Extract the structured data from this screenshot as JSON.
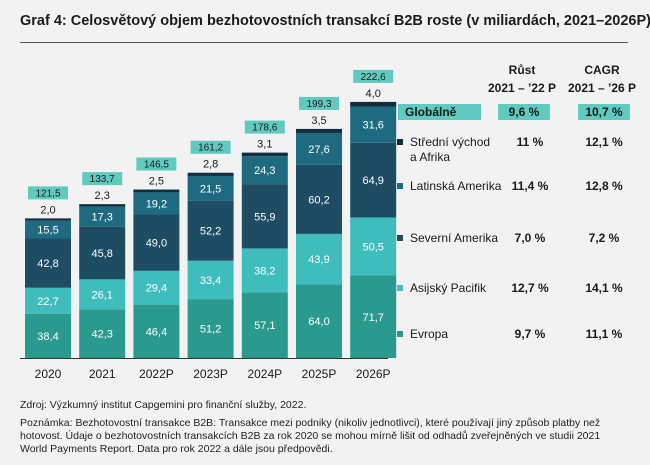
{
  "title": "Graf 4: Celosvětový objem bezhotovostních transakcí B2B roste (v miliardách, 2021–2026P)",
  "source": "Zdroj: Výzkumný institut Capgemini pro finanční služby, 2022.",
  "footnote": "Poznámka: Bezhotovostní transakce B2B: Transakce mezi podniky (nikoliv jednotlivci), které používají jiný způsob platby než hotovost. Údaje o bezhotovostních transakcích B2B za rok 2020 se mohou mírně lišit od odhadů zveřejněných ve studii 2021 World Payments Report. Data pro rok 2022 a dále jsou předpovědi.",
  "colors": {
    "evropa": "#2a9a8e",
    "asia": "#3fbcbc",
    "north_america": "#1d4c63",
    "latin_america": "#1e6a80",
    "middle_east": "#0f2f40",
    "total_box": "#60c9c0",
    "global_row": "#60c9c0"
  },
  "chart_data": {
    "type": "bar",
    "stacked": true,
    "categories": [
      "2020",
      "2021",
      "2022P",
      "2023P",
      "2024P",
      "2025P",
      "2026P"
    ],
    "series": [
      {
        "name": "Evropa",
        "values": [
          38.4,
          42.3,
          46.4,
          51.2,
          57.1,
          64.0,
          71.7
        ],
        "labels": [
          "38,4",
          "42,3",
          "46,4",
          "51,2",
          "57,1",
          "64,0",
          "71,7"
        ]
      },
      {
        "name": "Asijský Pacifik",
        "values": [
          22.7,
          26.1,
          29.4,
          33.4,
          38.2,
          43.9,
          50.5
        ],
        "labels": [
          "22,7",
          "26,1",
          "29,4",
          "33,4",
          "38,2",
          "43,9",
          "50,5"
        ]
      },
      {
        "name": "Severní Amerika",
        "values": [
          42.8,
          45.8,
          49.0,
          52.2,
          55.9,
          60.2,
          64.9
        ],
        "labels": [
          "42,8",
          "45,8",
          "49,0",
          "52,2",
          "55,9",
          "60,2",
          "64,9"
        ]
      },
      {
        "name": "Latinská Amerika",
        "values": [
          15.5,
          17.3,
          19.2,
          21.5,
          24.3,
          27.6,
          31.6
        ],
        "labels": [
          "15,5",
          "17,3",
          "19,2",
          "21,5",
          "24,3",
          "27,6",
          "31,6"
        ]
      },
      {
        "name": "Střední východ a Afrika",
        "values": [
          2.0,
          2.3,
          2.5,
          2.8,
          3.1,
          3.5,
          4.0
        ],
        "labels": [
          "2,0",
          "2,3",
          "2,5",
          "2,8",
          "3,1",
          "3,5",
          "4,0"
        ]
      }
    ],
    "totals": [
      121.5,
      133.7,
      146.5,
      161.2,
      178.6,
      199.3,
      222.6
    ],
    "total_labels": [
      "121,5",
      "133,7",
      "146,5",
      "161,2",
      "178,6",
      "199,3",
      "222,6"
    ],
    "table": {
      "header_growth": [
        "Růst",
        "2021 – ’22 P"
      ],
      "header_cagr": [
        "CAGR",
        "2021 – ’26 P"
      ],
      "rows": [
        {
          "label": [
            "Globálně"
          ],
          "growth": "9,6 %",
          "cagr": "10,7 %",
          "highlight": true
        },
        {
          "label": [
            "Střední východ",
            "a Afrika"
          ],
          "growth": "11 %",
          "cagr": "12,1 %"
        },
        {
          "label": [
            "Latinská Amerika"
          ],
          "growth": "11,4 %",
          "cagr": "12,8 %"
        },
        {
          "label": [
            "Severní Amerika"
          ],
          "growth": "7,0 %",
          "cagr": "7,2 %"
        },
        {
          "label": [
            "Asijský Pacifik"
          ],
          "growth": "12,7 %",
          "cagr": "14,1 %"
        },
        {
          "label": [
            "Evropa"
          ],
          "growth": "9,7 %",
          "cagr": "11,1 %"
        }
      ]
    }
  }
}
